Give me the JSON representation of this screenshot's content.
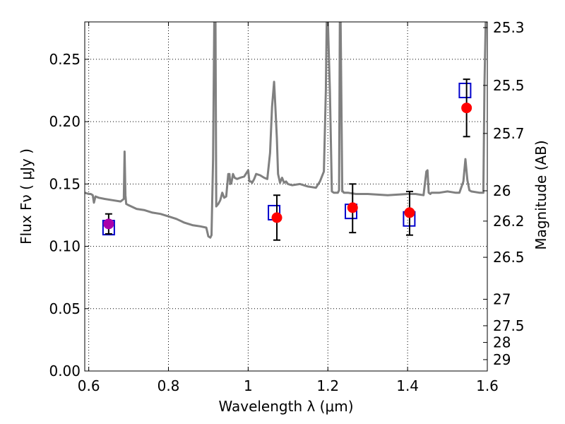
{
  "chart_data": {
    "type": "scatter",
    "xlabel": "Wavelength  λ (μm)",
    "ylabel": "Flux  Fν  ( μJy )",
    "ylabel_right": "Magnitude (AB)",
    "xlim": [
      0.59,
      1.6
    ],
    "ylim": [
      0.0,
      0.28
    ],
    "grid": true,
    "x_ticks": [
      0.6,
      0.8,
      1.0,
      1.2,
      1.4,
      1.6
    ],
    "x_tick_labels": [
      "0.6",
      "0.8",
      "1",
      "1.2",
      "1.4",
      "1.6"
    ],
    "y_ticks": [
      0.0,
      0.05,
      0.1,
      0.15,
      0.2,
      0.25
    ],
    "y_tick_labels": [
      "0.00",
      "0.05",
      "0.10",
      "0.15",
      "0.20",
      "0.25"
    ],
    "right_ticks": [
      {
        "label": "25.3",
        "mag": 25.3
      },
      {
        "label": "25.5",
        "mag": 25.5
      },
      {
        "label": "25.7",
        "mag": 25.7
      },
      {
        "label": "26",
        "mag": 26.0
      },
      {
        "label": "26.2",
        "mag": 26.2
      },
      {
        "label": "26.5",
        "mag": 26.5
      },
      {
        "label": "27",
        "mag": 27.0
      },
      {
        "label": "27.5",
        "mag": 27.5
      },
      {
        "label": "28",
        "mag": 28.0
      },
      {
        "label": "29",
        "mag": 29.0
      }
    ],
    "colors": {
      "model": "#808080",
      "observed": "#ff0000",
      "model_points": "#0000cc",
      "overlap": "#aa00aa",
      "errorbar": "#000000",
      "grid": "#000000"
    },
    "model_spectrum": {
      "name": "model",
      "x": [
        0.59,
        0.6,
        0.605,
        0.61,
        0.613,
        0.617,
        0.625,
        0.64,
        0.66,
        0.68,
        0.688,
        0.69,
        0.692,
        0.694,
        0.7,
        0.72,
        0.74,
        0.76,
        0.78,
        0.8,
        0.82,
        0.84,
        0.86,
        0.88,
        0.895,
        0.9,
        0.905,
        0.908,
        0.912,
        0.915,
        0.918,
        0.92,
        0.925,
        0.93,
        0.935,
        0.94,
        0.945,
        0.95,
        0.953,
        0.955,
        0.958,
        0.962,
        0.966,
        0.972,
        0.98,
        0.99,
        1.0,
        1.003,
        1.007,
        1.01,
        1.015,
        1.02,
        1.03,
        1.04,
        1.048,
        1.055,
        1.06,
        1.065,
        1.068,
        1.072,
        1.075,
        1.08,
        1.085,
        1.09,
        1.095,
        1.1,
        1.11,
        1.13,
        1.15,
        1.17,
        1.18,
        1.19,
        1.195,
        1.197,
        1.2,
        1.205,
        1.21,
        1.215,
        1.22,
        1.225,
        1.228,
        1.23,
        1.232,
        1.236,
        1.238,
        1.24,
        1.25,
        1.27,
        1.3,
        1.35,
        1.4,
        1.42,
        1.44,
        1.447,
        1.45,
        1.453,
        1.457,
        1.46,
        1.48,
        1.5,
        1.52,
        1.53,
        1.54,
        1.545,
        1.55,
        1.555,
        1.56,
        1.58,
        1.59,
        1.593,
        1.596,
        1.6
      ],
      "y": [
        0.143,
        0.142,
        0.142,
        0.141,
        0.135,
        0.14,
        0.139,
        0.138,
        0.137,
        0.136,
        0.138,
        0.176,
        0.141,
        0.134,
        0.133,
        0.13,
        0.129,
        0.127,
        0.126,
        0.124,
        0.122,
        0.119,
        0.117,
        0.116,
        0.115,
        0.108,
        0.107,
        0.109,
        0.17,
        0.28,
        0.28,
        0.132,
        0.134,
        0.137,
        0.143,
        0.139,
        0.14,
        0.158,
        0.158,
        0.15,
        0.151,
        0.158,
        0.155,
        0.154,
        0.155,
        0.156,
        0.161,
        0.152,
        0.152,
        0.151,
        0.154,
        0.158,
        0.157,
        0.155,
        0.154,
        0.175,
        0.212,
        0.232,
        0.213,
        0.187,
        0.158,
        0.151,
        0.155,
        0.151,
        0.152,
        0.15,
        0.149,
        0.15,
        0.148,
        0.147,
        0.152,
        0.16,
        0.225,
        0.28,
        0.28,
        0.225,
        0.144,
        0.143,
        0.143,
        0.143,
        0.145,
        0.28,
        0.28,
        0.144,
        0.144,
        0.143,
        0.143,
        0.142,
        0.142,
        0.141,
        0.142,
        0.142,
        0.141,
        0.16,
        0.161,
        0.143,
        0.142,
        0.143,
        0.143,
        0.144,
        0.143,
        0.143,
        0.152,
        0.17,
        0.153,
        0.145,
        0.144,
        0.143,
        0.143,
        0.23,
        0.28,
        0.28
      ]
    },
    "observed_points": [
      {
        "x": 0.65,
        "y": 0.118,
        "yerr_low": 0.008,
        "yerr_high": 0.008
      },
      {
        "x": 1.072,
        "y": 0.123,
        "yerr_low": 0.018,
        "yerr_high": 0.018
      },
      {
        "x": 1.262,
        "y": 0.131,
        "yerr_low": 0.02,
        "yerr_high": 0.019
      },
      {
        "x": 1.405,
        "y": 0.127,
        "yerr_low": 0.018,
        "yerr_high": 0.017
      },
      {
        "x": 1.548,
        "y": 0.211,
        "yerr_low": 0.023,
        "yerr_high": 0.023
      }
    ],
    "model_points": [
      {
        "x": 0.65,
        "y": 0.115
      },
      {
        "x": 1.065,
        "y": 0.127
      },
      {
        "x": 1.258,
        "y": 0.128
      },
      {
        "x": 1.404,
        "y": 0.122
      },
      {
        "x": 1.544,
        "y": 0.225
      }
    ]
  }
}
